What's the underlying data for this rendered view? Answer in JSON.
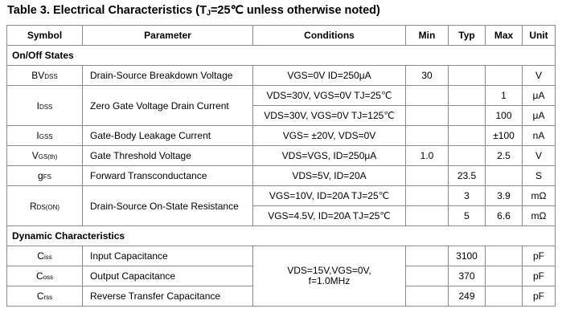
{
  "caption": {
    "prefix": "Table 3.   Electrical Characteristics (T",
    "sub": "J",
    "suffix": "=25℃  unless otherwise noted)"
  },
  "headers": [
    "Symbol",
    "Parameter",
    "Conditions",
    "Min",
    "Typ",
    "Max",
    "Unit"
  ],
  "sections": {
    "onoff": "On/Off States",
    "dynamic": "Dynamic Characteristics"
  },
  "rows": {
    "bvdss": {
      "sym_main": "BV",
      "sym_sub": "DSS",
      "param": "Drain-Source Breakdown Voltage",
      "cond": "VGS=0V ID=250μA",
      "min": "30",
      "typ": "",
      "max": "",
      "unit": "V"
    },
    "idss": {
      "sym_main": "I",
      "sym_sub": "DSS",
      "param": "Zero Gate Voltage Drain Current",
      "cond1": "VDS=30V, VGS=0V TJ=25℃",
      "max1": "1",
      "unit1": "μA",
      "cond2": "VDS=30V, VGS=0V TJ=125℃",
      "max2": "100",
      "unit2": "μA"
    },
    "igss": {
      "sym_main": "I",
      "sym_sub": "GSS",
      "param": "Gate-Body Leakage Current",
      "cond": "VGS= ±20V, VDS=0V",
      "min": "",
      "typ": "",
      "max": "±100",
      "unit": "nA"
    },
    "vgsth": {
      "sym_main": "V",
      "sym_sub": "GS(th)",
      "param": "Gate Threshold Voltage",
      "cond": "VDS=VGS, ID=250μA",
      "min": "1.0",
      "typ": "",
      "max": "2.5",
      "unit": "V"
    },
    "gfs": {
      "sym_main": "g",
      "sym_sub": "FS",
      "param": "Forward Transconductance",
      "cond": "VDS=5V, ID=20A",
      "min": "",
      "typ": "23.5",
      "max": "",
      "unit": "S"
    },
    "rdson": {
      "sym_main": "R",
      "sym_sub": "DS(ON)",
      "param": "Drain-Source On-State Resistance",
      "cond1": "VGS=10V, ID=20A TJ=25℃",
      "typ1": "3",
      "max1": "3.9",
      "unit1": "mΩ",
      "cond2": "VGS=4.5V, ID=20A TJ=25℃",
      "typ2": "5",
      "max2": "6.6",
      "unit2": "mΩ"
    },
    "ciss": {
      "sym_main": "C",
      "sym_sub": "iss",
      "param": "Input Capacitance",
      "typ": "3100",
      "unit": "pF"
    },
    "coss": {
      "sym_main": "C",
      "sym_sub": "oss",
      "param": "Output Capacitance",
      "typ": "370",
      "unit": "pF"
    },
    "crss": {
      "sym_main": "C",
      "sym_sub": "rss",
      "param": "Reverse Transfer Capacitance",
      "typ": "249",
      "unit": "pF"
    },
    "cap_cond_line1": "VDS=15V,VGS=0V,",
    "cap_cond_line2": "f=1.0MHz"
  }
}
